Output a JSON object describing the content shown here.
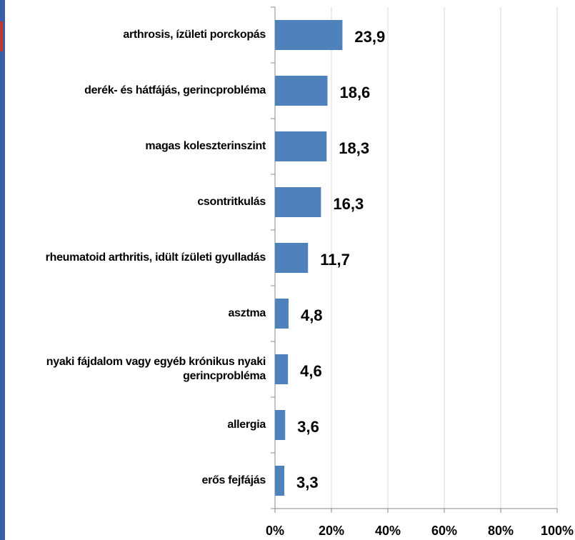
{
  "chart_data": {
    "type": "bar",
    "orientation": "horizontal",
    "categories": [
      "arthrosis, ízületi porckopás",
      "derék- és hátfájás, gerincprobléma",
      "magas koleszterinszint",
      "csontritkulás",
      "rheumatoid arthritis, idült ízületi gyulladás",
      "asztma",
      "nyaki fájdalom vagy egyéb krónikus nyaki gerincprobléma",
      "allergia",
      "erős fejfájás"
    ],
    "values": [
      23.9,
      18.6,
      18.3,
      16.3,
      11.7,
      4.8,
      4.6,
      3.6,
      3.3
    ],
    "value_labels": [
      "23,9",
      "18,6",
      "18,3",
      "16,3",
      "11,7",
      "4,8",
      "4,6",
      "3,6",
      "3,3"
    ],
    "color": "#4f81bd",
    "xlim": [
      0,
      100
    ],
    "xticks": [
      {
        "value": 0,
        "label": "0%"
      },
      {
        "value": 20,
        "label": "20%"
      },
      {
        "value": 40,
        "label": "40%"
      },
      {
        "value": 60,
        "label": "60%"
      },
      {
        "value": 80,
        "label": "80%"
      },
      {
        "value": 100,
        "label": "100%"
      }
    ],
    "grid": true
  }
}
